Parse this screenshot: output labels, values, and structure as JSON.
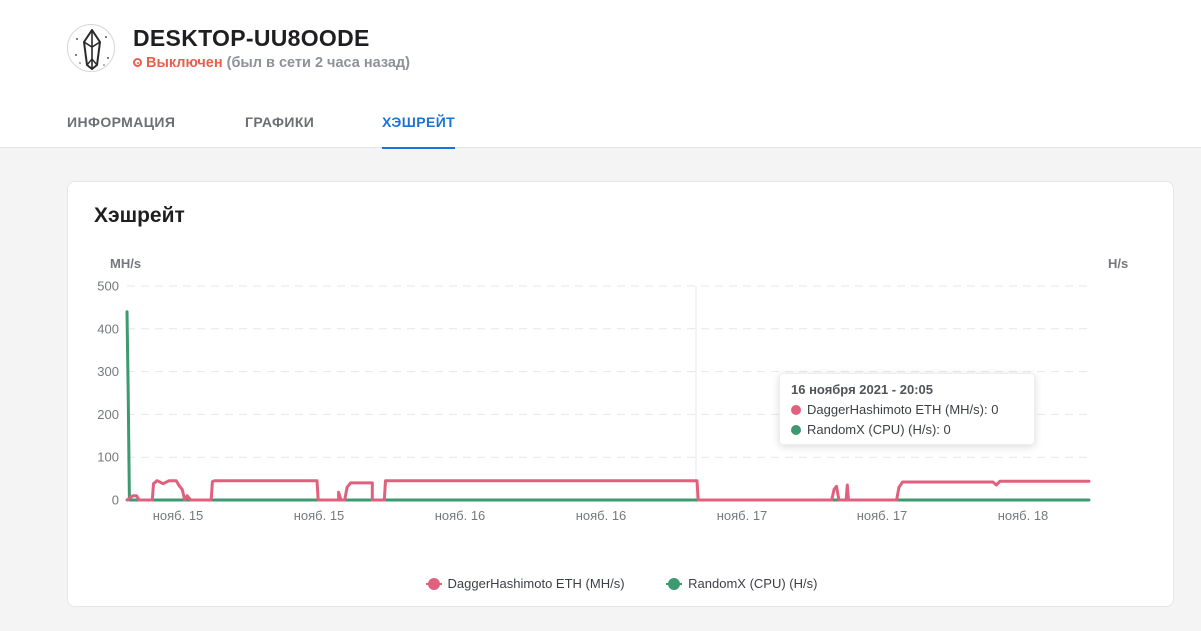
{
  "device": {
    "name": "DESKTOP-UU8OODE",
    "status": "Выключен",
    "last_seen": "(был в сети 2 часа назад)"
  },
  "tabs": [
    {
      "label": "ИНФОРМАЦИЯ",
      "active": false
    },
    {
      "label": "ГРАФИКИ",
      "active": false
    },
    {
      "label": "ХЭШРЕЙТ",
      "active": true
    }
  ],
  "card": {
    "title": "Хэшрейт"
  },
  "colors": {
    "accent": "#1b73d8",
    "offline": "#e8604c",
    "eth": "#e0607e",
    "randomx": "#3d9970"
  },
  "tooltip": {
    "title": "16 ноября 2021 - 20:05",
    "rows": [
      {
        "series": "eth",
        "text": "DaggerHashimoto ETH (MH/s): 0"
      },
      {
        "series": "randomx",
        "text": "RandomX (CPU) (H/s): 0"
      }
    ]
  },
  "legend": [
    {
      "series": "eth",
      "label": "DaggerHashimoto ETH (MH/s)"
    },
    {
      "series": "randomx",
      "label": "RandomX (CPU) (H/s)"
    }
  ],
  "chart_data": {
    "type": "line",
    "left_axis_unit": "MH/s",
    "right_axis_unit": "H/s",
    "ylim": [
      0,
      500
    ],
    "y_ticks": [
      0,
      100,
      200,
      300,
      400,
      500
    ],
    "x_tick_labels": [
      "нояб. 15",
      "нояб. 15",
      "нояб. 16",
      "нояб. 16",
      "нояб. 17",
      "нояб. 17",
      "нояб. 18"
    ],
    "xlim": [
      0,
      80
    ],
    "grid": true,
    "legend_position": "bottom",
    "series": [
      {
        "name": "DaggerHashimoto ETH (MH/s)",
        "color_key": "eth",
        "points": [
          [
            0,
            0
          ],
          [
            0.5,
            10
          ],
          [
            0.8,
            10
          ],
          [
            1,
            0
          ],
          [
            2.1,
            0
          ],
          [
            2.2,
            38
          ],
          [
            2.5,
            45
          ],
          [
            3,
            38
          ],
          [
            3.5,
            45
          ],
          [
            4.1,
            45
          ],
          [
            4.3,
            35
          ],
          [
            4.6,
            24
          ],
          [
            4.8,
            0
          ],
          [
            5,
            10
          ],
          [
            5.3,
            0
          ],
          [
            7,
            0
          ],
          [
            7.1,
            43
          ],
          [
            7.3,
            45
          ],
          [
            15.8,
            45
          ],
          [
            15.9,
            0
          ],
          [
            17.6,
            0
          ],
          [
            17.6,
            18
          ],
          [
            17.8,
            0
          ],
          [
            18.1,
            0
          ],
          [
            18.3,
            30
          ],
          [
            18.6,
            40
          ],
          [
            20.4,
            40
          ],
          [
            20.4,
            0
          ],
          [
            21.4,
            0
          ],
          [
            21.5,
            45
          ],
          [
            47.4,
            45
          ],
          [
            47.5,
            0
          ],
          [
            58.6,
            0
          ],
          [
            58.8,
            25
          ],
          [
            59,
            32
          ],
          [
            59.2,
            0
          ],
          [
            59.8,
            0
          ],
          [
            59.9,
            35
          ],
          [
            60,
            0
          ],
          [
            64,
            0
          ],
          [
            64.2,
            30
          ],
          [
            64.5,
            42
          ],
          [
            72,
            42
          ],
          [
            72.3,
            35
          ],
          [
            72.6,
            44
          ],
          [
            80,
            44
          ]
        ]
      },
      {
        "name": "RandomX (CPU) (H/s)",
        "color_key": "randomx",
        "points": [
          [
            0,
            440
          ],
          [
            0.1,
            250
          ],
          [
            0.2,
            0
          ],
          [
            80,
            0
          ]
        ]
      }
    ]
  }
}
